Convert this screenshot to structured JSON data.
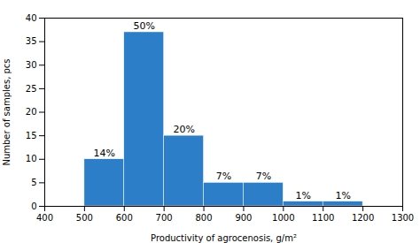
{
  "chart_data": {
    "type": "histogram",
    "bins": [
      500,
      600,
      700,
      800,
      900,
      1000,
      1100,
      1200
    ],
    "values": [
      10,
      37,
      15,
      5,
      5,
      1,
      1
    ],
    "percentages": [
      14,
      50,
      20,
      7,
      7,
      1,
      1
    ],
    "percentage_labels": [
      "14%",
      "50%",
      "20%",
      "7%",
      "7%",
      "1%",
      "1%"
    ],
    "xlabel": "Productivity of agrocenosis, g/m²",
    "ylabel": "Number of samples, pcs",
    "color": "#2b7ec7",
    "xlim": [
      400,
      1300
    ],
    "ylim": [
      0,
      40
    ],
    "xticks": [
      400,
      500,
      600,
      700,
      800,
      900,
      1000,
      1100,
      1200,
      1300
    ],
    "yticks": [
      0,
      5,
      10,
      15,
      20,
      25,
      30,
      35,
      40
    ],
    "grid": false
  }
}
